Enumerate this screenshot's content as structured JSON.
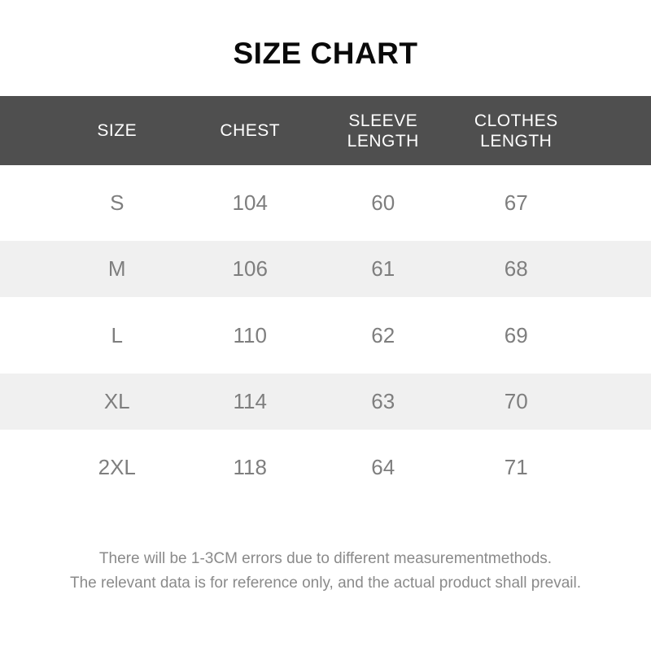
{
  "title": "SIZE CHART",
  "colors": {
    "title_text": "#0a0a0a",
    "header_bg": "#4f4f4f",
    "header_text": "#ffffff",
    "stripe_bg": "#f0f0f0",
    "body_text": "#7e7e7e",
    "footer_text": "#8a8a8a"
  },
  "table": {
    "headers": [
      {
        "label": "SIZE",
        "lines": [
          "SIZE"
        ]
      },
      {
        "label": "CHEST",
        "lines": [
          "CHEST"
        ]
      },
      {
        "label": "SLEEVE LENGTH",
        "lines": [
          "SLEEVE",
          "LENGTH"
        ]
      },
      {
        "label": "CLOTHES LENGTH",
        "lines": [
          "CLOTHES",
          "LENGTH"
        ]
      }
    ],
    "rows": [
      {
        "size": "S",
        "chest": "104",
        "sleeve_length": "60",
        "clothes_length": "67"
      },
      {
        "size": "M",
        "chest": "106",
        "sleeve_length": "61",
        "clothes_length": "68"
      },
      {
        "size": "L",
        "chest": "110",
        "sleeve_length": "62",
        "clothes_length": "69"
      },
      {
        "size": "XL",
        "chest": "114",
        "sleeve_length": "63",
        "clothes_length": "70"
      },
      {
        "size": "2XL",
        "chest": "118",
        "sleeve_length": "64",
        "clothes_length": "71"
      }
    ]
  },
  "footer": {
    "line1": "There will be 1-3CM errors due to different measurementmethods.",
    "line2": "The relevant data is for reference only, and the actual product shall prevail."
  },
  "chart_data": {
    "type": "table",
    "title": "SIZE CHART",
    "columns": [
      "SIZE",
      "CHEST",
      "SLEEVE LENGTH",
      "CLOTHES LENGTH"
    ],
    "rows": [
      [
        "S",
        104,
        60,
        67
      ],
      [
        "M",
        106,
        61,
        68
      ],
      [
        "L",
        110,
        62,
        69
      ],
      [
        "XL",
        114,
        63,
        70
      ],
      [
        "2XL",
        118,
        64,
        71
      ]
    ],
    "notes": [
      "There will be 1-3CM errors due to different measurementmethods.",
      "The relevant data is for reference only, and the actual product shall prevail."
    ]
  }
}
